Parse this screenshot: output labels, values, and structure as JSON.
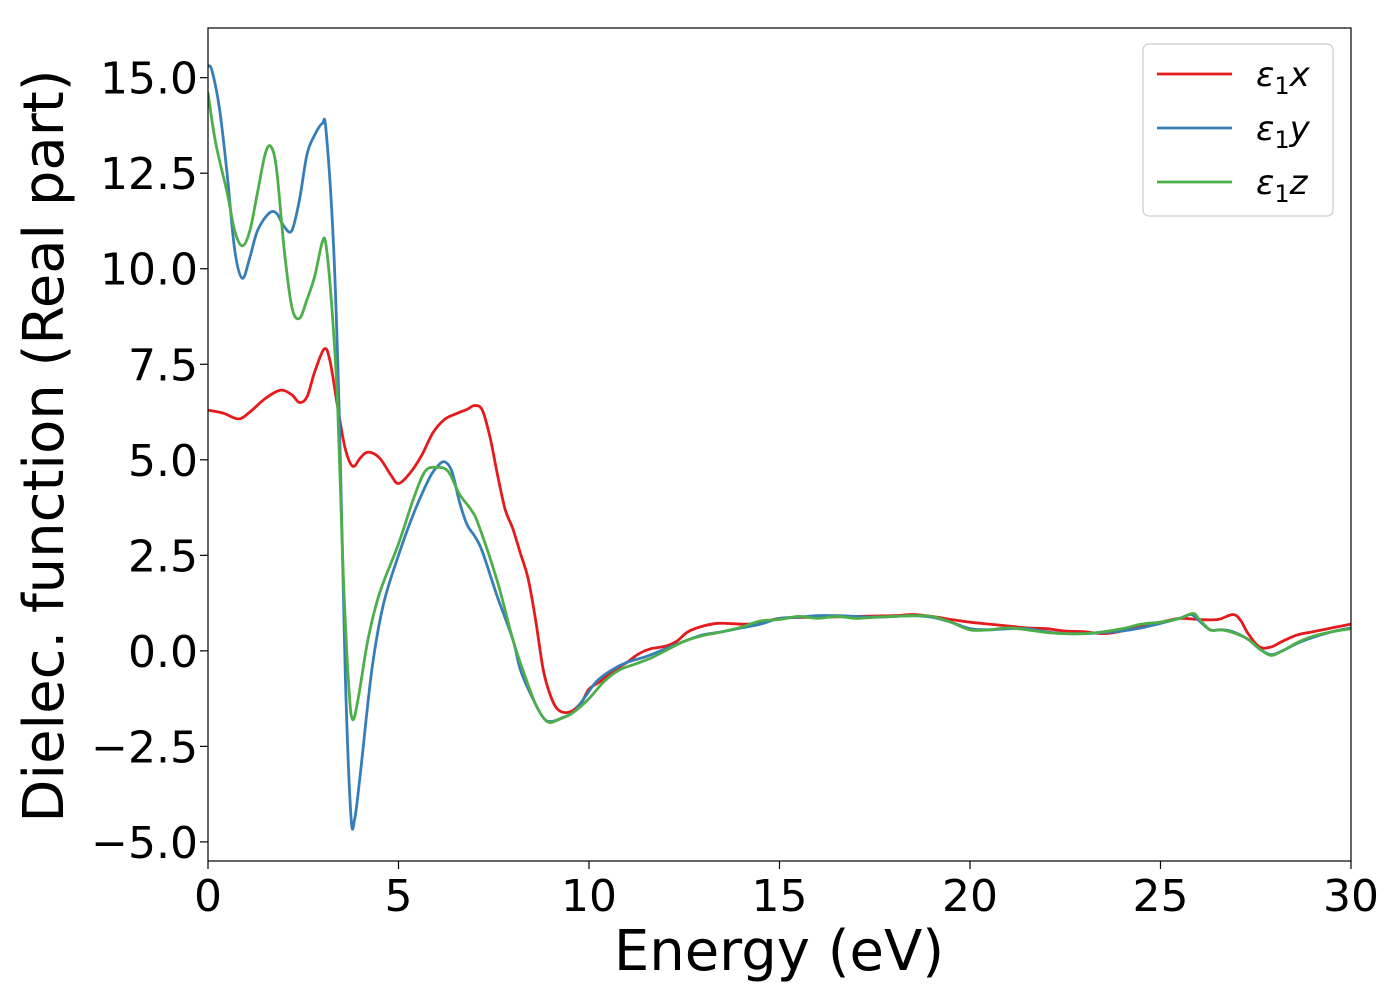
{
  "chart_data": {
    "type": "line",
    "title": "",
    "xlabel": "Energy (eV)",
    "ylabel": "Dielec. function (Real part)",
    "xlim": [
      0,
      30
    ],
    "ylim": [
      -5.5,
      16.3
    ],
    "xticks": [
      0,
      5,
      10,
      15,
      20,
      25,
      30
    ],
    "xtick_labels": [
      "0",
      "5",
      "10",
      "15",
      "20",
      "25",
      "30"
    ],
    "yticks": [
      -5.0,
      -2.5,
      0.0,
      2.5,
      5.0,
      7.5,
      10.0,
      12.5,
      15.0
    ],
    "ytick_labels": [
      "−5.0",
      "−2.5",
      "0.0",
      "2.5",
      "5.0",
      "7.5",
      "10.0",
      "12.5",
      "15.0"
    ],
    "grid": false,
    "legend_position": "top-right",
    "series": [
      {
        "name": "ε₁x",
        "legend_base": "ε",
        "legend_sub": "1",
        "legend_var": "x",
        "color": "#e41a1c",
        "points": [
          [
            0,
            6.3
          ],
          [
            0.4,
            6.22
          ],
          [
            0.8,
            6.07
          ],
          [
            1.1,
            6.25
          ],
          [
            1.5,
            6.6
          ],
          [
            1.9,
            6.82
          ],
          [
            2.2,
            6.7
          ],
          [
            2.4,
            6.5
          ],
          [
            2.6,
            6.65
          ],
          [
            2.8,
            7.3
          ],
          [
            3.05,
            7.9
          ],
          [
            3.2,
            7.6
          ],
          [
            3.4,
            6.4
          ],
          [
            3.6,
            5.3
          ],
          [
            3.8,
            4.83
          ],
          [
            4.0,
            5.05
          ],
          [
            4.2,
            5.2
          ],
          [
            4.5,
            5.05
          ],
          [
            4.8,
            4.6
          ],
          [
            5.0,
            4.38
          ],
          [
            5.3,
            4.65
          ],
          [
            5.6,
            5.1
          ],
          [
            5.9,
            5.7
          ],
          [
            6.2,
            6.05
          ],
          [
            6.5,
            6.2
          ],
          [
            6.8,
            6.32
          ],
          [
            7.0,
            6.42
          ],
          [
            7.2,
            6.3
          ],
          [
            7.4,
            5.6
          ],
          [
            7.6,
            4.6
          ],
          [
            7.8,
            3.7
          ],
          [
            8.0,
            3.2
          ],
          [
            8.2,
            2.55
          ],
          [
            8.4,
            1.9
          ],
          [
            8.6,
            0.8
          ],
          [
            8.8,
            -0.5
          ],
          [
            9.0,
            -1.2
          ],
          [
            9.2,
            -1.55
          ],
          [
            9.5,
            -1.6
          ],
          [
            9.8,
            -1.35
          ],
          [
            10.0,
            -1.0
          ],
          [
            10.3,
            -0.8
          ],
          [
            10.6,
            -0.55
          ],
          [
            11.0,
            -0.3
          ],
          [
            11.3,
            -0.08
          ],
          [
            11.6,
            0.05
          ],
          [
            12.0,
            0.12
          ],
          [
            12.3,
            0.25
          ],
          [
            12.6,
            0.5
          ],
          [
            13.0,
            0.65
          ],
          [
            13.4,
            0.72
          ],
          [
            14.0,
            0.7
          ],
          [
            14.5,
            0.72
          ],
          [
            15.0,
            0.85
          ],
          [
            16.0,
            0.88
          ],
          [
            17.0,
            0.9
          ],
          [
            18.0,
            0.92
          ],
          [
            18.5,
            0.95
          ],
          [
            19.0,
            0.9
          ],
          [
            19.5,
            0.82
          ],
          [
            20.0,
            0.75
          ],
          [
            20.5,
            0.7
          ],
          [
            21.0,
            0.65
          ],
          [
            21.5,
            0.6
          ],
          [
            22.0,
            0.58
          ],
          [
            22.5,
            0.52
          ],
          [
            23.0,
            0.5
          ],
          [
            23.5,
            0.45
          ],
          [
            24.0,
            0.52
          ],
          [
            24.5,
            0.65
          ],
          [
            25.0,
            0.75
          ],
          [
            25.5,
            0.85
          ],
          [
            26.0,
            0.82
          ],
          [
            26.5,
            0.82
          ],
          [
            26.9,
            0.95
          ],
          [
            27.1,
            0.8
          ],
          [
            27.3,
            0.45
          ],
          [
            27.6,
            0.1
          ],
          [
            27.9,
            0.1
          ],
          [
            28.2,
            0.25
          ],
          [
            28.6,
            0.42
          ],
          [
            29.0,
            0.5
          ],
          [
            29.5,
            0.6
          ],
          [
            30.0,
            0.7
          ]
        ]
      },
      {
        "name": "ε₁y",
        "legend_base": "ε",
        "legend_sub": "1",
        "legend_var": "y",
        "color": "#377eb8",
        "points": [
          [
            0,
            15.3
          ],
          [
            0.1,
            15.2
          ],
          [
            0.3,
            14.2
          ],
          [
            0.5,
            12.5
          ],
          [
            0.7,
            10.5
          ],
          [
            0.9,
            9.75
          ],
          [
            1.1,
            10.3
          ],
          [
            1.3,
            11.0
          ],
          [
            1.6,
            11.45
          ],
          [
            1.8,
            11.45
          ],
          [
            2.0,
            11.1
          ],
          [
            2.2,
            11.0
          ],
          [
            2.4,
            11.8
          ],
          [
            2.6,
            13.0
          ],
          [
            2.8,
            13.5
          ],
          [
            3.0,
            13.8
          ],
          [
            3.1,
            13.6
          ],
          [
            3.3,
            10.5
          ],
          [
            3.45,
            6.0
          ],
          [
            3.6,
            -0.5
          ],
          [
            3.75,
            -4.3
          ],
          [
            3.85,
            -4.4
          ],
          [
            4.0,
            -3.2
          ],
          [
            4.3,
            -0.5
          ],
          [
            4.6,
            1.2
          ],
          [
            5.0,
            2.5
          ],
          [
            5.4,
            3.6
          ],
          [
            5.8,
            4.5
          ],
          [
            6.0,
            4.8
          ],
          [
            6.2,
            4.95
          ],
          [
            6.4,
            4.7
          ],
          [
            6.6,
            3.9
          ],
          [
            6.8,
            3.3
          ],
          [
            7.0,
            3.0
          ],
          [
            7.2,
            2.6
          ],
          [
            7.6,
            1.4
          ],
          [
            8.0,
            0.3
          ],
          [
            8.2,
            -0.5
          ],
          [
            8.5,
            -1.2
          ],
          [
            8.8,
            -1.75
          ],
          [
            9.0,
            -1.85
          ],
          [
            9.3,
            -1.75
          ],
          [
            9.6,
            -1.6
          ],
          [
            9.9,
            -1.2
          ],
          [
            10.2,
            -0.8
          ],
          [
            10.6,
            -0.5
          ],
          [
            11.0,
            -0.3
          ],
          [
            11.5,
            -0.15
          ],
          [
            12.0,
            0.05
          ],
          [
            12.5,
            0.25
          ],
          [
            13.0,
            0.42
          ],
          [
            13.5,
            0.5
          ],
          [
            14.0,
            0.6
          ],
          [
            14.5,
            0.7
          ],
          [
            15.0,
            0.85
          ],
          [
            15.5,
            0.88
          ],
          [
            16.0,
            0.92
          ],
          [
            16.5,
            0.92
          ],
          [
            17.0,
            0.9
          ],
          [
            17.5,
            0.88
          ],
          [
            18.0,
            0.9
          ],
          [
            18.5,
            0.92
          ],
          [
            19.0,
            0.88
          ],
          [
            19.5,
            0.75
          ],
          [
            20.0,
            0.58
          ],
          [
            20.5,
            0.55
          ],
          [
            21.0,
            0.58
          ],
          [
            21.5,
            0.58
          ],
          [
            22.0,
            0.5
          ],
          [
            22.5,
            0.45
          ],
          [
            23.0,
            0.45
          ],
          [
            23.5,
            0.48
          ],
          [
            24.0,
            0.52
          ],
          [
            24.5,
            0.6
          ],
          [
            25.0,
            0.72
          ],
          [
            25.5,
            0.85
          ],
          [
            25.8,
            0.95
          ],
          [
            26.0,
            0.8
          ],
          [
            26.3,
            0.55
          ],
          [
            26.6,
            0.55
          ],
          [
            26.9,
            0.5
          ],
          [
            27.3,
            0.3
          ],
          [
            27.6,
            0.05
          ],
          [
            27.9,
            -0.1
          ],
          [
            28.2,
            0.0
          ],
          [
            28.6,
            0.2
          ],
          [
            29.0,
            0.35
          ],
          [
            29.5,
            0.5
          ],
          [
            30.0,
            0.6
          ]
        ]
      },
      {
        "name": "ε₁z",
        "legend_base": "ε",
        "legend_sub": "1",
        "legend_var": "z",
        "color": "#4daf4a",
        "points": [
          [
            0,
            14.6
          ],
          [
            0.2,
            13.3
          ],
          [
            0.5,
            12.0
          ],
          [
            0.7,
            11.0
          ],
          [
            0.9,
            10.6
          ],
          [
            1.1,
            11.0
          ],
          [
            1.3,
            12.0
          ],
          [
            1.5,
            13.0
          ],
          [
            1.65,
            13.2
          ],
          [
            1.8,
            12.6
          ],
          [
            2.0,
            10.5
          ],
          [
            2.2,
            9.0
          ],
          [
            2.4,
            8.7
          ],
          [
            2.6,
            9.2
          ],
          [
            2.8,
            9.8
          ],
          [
            3.0,
            10.7
          ],
          [
            3.1,
            10.6
          ],
          [
            3.25,
            9.0
          ],
          [
            3.4,
            6.5
          ],
          [
            3.55,
            2.0
          ],
          [
            3.7,
            -1.0
          ],
          [
            3.8,
            -1.8
          ],
          [
            3.95,
            -1.2
          ],
          [
            4.2,
            0.3
          ],
          [
            4.5,
            1.5
          ],
          [
            5.0,
            2.8
          ],
          [
            5.4,
            4.0
          ],
          [
            5.7,
            4.7
          ],
          [
            6.0,
            4.8
          ],
          [
            6.3,
            4.7
          ],
          [
            6.6,
            4.1
          ],
          [
            6.9,
            3.7
          ],
          [
            7.1,
            3.3
          ],
          [
            7.6,
            1.8
          ],
          [
            8.0,
            0.3
          ],
          [
            8.3,
            -0.6
          ],
          [
            8.6,
            -1.4
          ],
          [
            8.9,
            -1.85
          ],
          [
            9.2,
            -1.8
          ],
          [
            9.6,
            -1.6
          ],
          [
            10.0,
            -1.25
          ],
          [
            10.4,
            -0.8
          ],
          [
            10.8,
            -0.5
          ],
          [
            11.2,
            -0.35
          ],
          [
            11.6,
            -0.2
          ],
          [
            12.0,
            0.0
          ],
          [
            12.5,
            0.25
          ],
          [
            13.0,
            0.4
          ],
          [
            13.5,
            0.5
          ],
          [
            14.0,
            0.62
          ],
          [
            14.5,
            0.78
          ],
          [
            15.0,
            0.82
          ],
          [
            15.5,
            0.9
          ],
          [
            16.0,
            0.85
          ],
          [
            16.5,
            0.9
          ],
          [
            17.0,
            0.85
          ],
          [
            17.5,
            0.88
          ],
          [
            18.0,
            0.9
          ],
          [
            18.5,
            0.92
          ],
          [
            19.0,
            0.9
          ],
          [
            19.5,
            0.75
          ],
          [
            20.0,
            0.55
          ],
          [
            20.5,
            0.55
          ],
          [
            21.0,
            0.6
          ],
          [
            21.5,
            0.55
          ],
          [
            22.0,
            0.48
          ],
          [
            22.5,
            0.45
          ],
          [
            23.0,
            0.45
          ],
          [
            23.5,
            0.5
          ],
          [
            24.0,
            0.58
          ],
          [
            24.5,
            0.7
          ],
          [
            25.0,
            0.75
          ],
          [
            25.5,
            0.85
          ],
          [
            25.85,
            0.98
          ],
          [
            26.0,
            0.85
          ],
          [
            26.3,
            0.55
          ],
          [
            26.6,
            0.55
          ],
          [
            26.9,
            0.48
          ],
          [
            27.3,
            0.3
          ],
          [
            27.6,
            0.05
          ],
          [
            27.9,
            -0.12
          ],
          [
            28.2,
            0.0
          ],
          [
            28.6,
            0.22
          ],
          [
            29.0,
            0.38
          ],
          [
            29.5,
            0.5
          ],
          [
            30.0,
            0.58
          ]
        ]
      }
    ]
  }
}
